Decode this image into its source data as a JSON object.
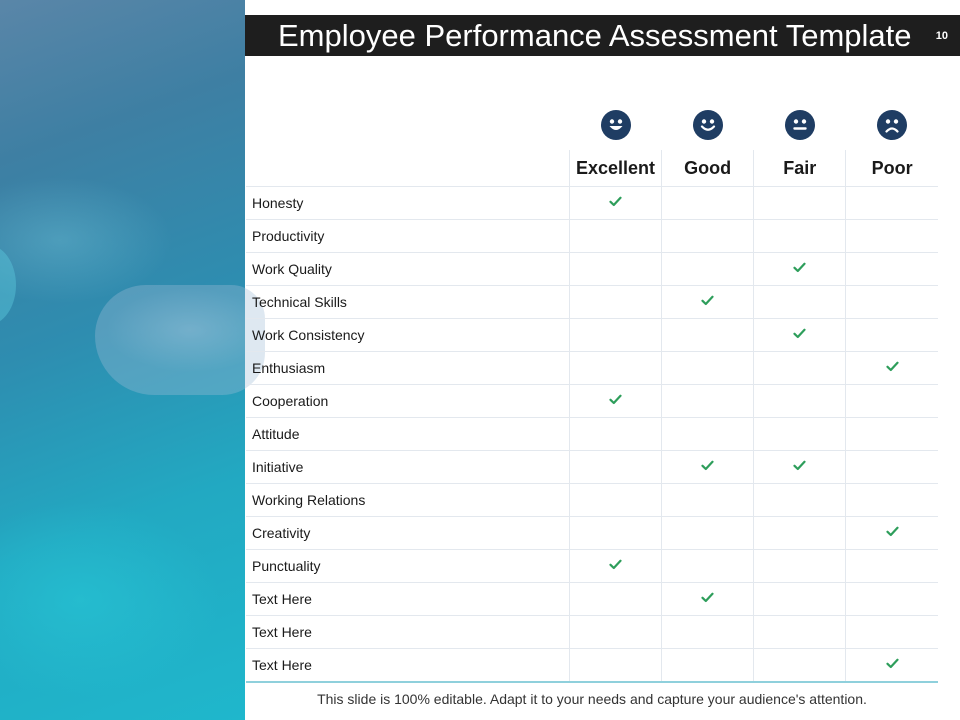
{
  "slide": {
    "title": "Employee Performance Assessment Template",
    "page_number": "10",
    "footer": "This slide is 100% editable. Adapt it to your needs and capture your audience's attention."
  },
  "colors": {
    "title_bar": "#1e1e1e",
    "icon_fill": "#1f3d63",
    "check": "#2e9e5b",
    "grid": "#e3e8ee",
    "bottom_rule": "#8fd0dc"
  },
  "ratings": [
    {
      "label": "Excellent",
      "icon": "very-happy-face-icon"
    },
    {
      "label": "Good",
      "icon": "happy-face-icon"
    },
    {
      "label": "Fair",
      "icon": "neutral-face-icon"
    },
    {
      "label": "Poor",
      "icon": "sad-face-icon"
    }
  ],
  "rows": [
    {
      "label": "Honesty",
      "checks": [
        true,
        false,
        false,
        false
      ]
    },
    {
      "label": "Productivity",
      "checks": [
        false,
        false,
        false,
        false
      ]
    },
    {
      "label": "Work Quality",
      "checks": [
        false,
        false,
        true,
        false
      ]
    },
    {
      "label": "Technical Skills",
      "checks": [
        false,
        true,
        false,
        false
      ]
    },
    {
      "label": "Work Consistency",
      "checks": [
        false,
        false,
        true,
        false
      ]
    },
    {
      "label": "Enthusiasm",
      "checks": [
        false,
        false,
        false,
        true
      ]
    },
    {
      "label": "Cooperation",
      "checks": [
        true,
        false,
        false,
        false
      ]
    },
    {
      "label": "Attitude",
      "checks": [
        false,
        false,
        false,
        false
      ]
    },
    {
      "label": "Initiative",
      "checks": [
        false,
        true,
        true,
        false
      ]
    },
    {
      "label": "Working Relations",
      "checks": [
        false,
        false,
        false,
        false
      ]
    },
    {
      "label": "Creativity",
      "checks": [
        false,
        false,
        false,
        true
      ]
    },
    {
      "label": "Punctuality",
      "checks": [
        true,
        false,
        false,
        false
      ]
    },
    {
      "label": "Text Here",
      "checks": [
        false,
        true,
        false,
        false
      ]
    },
    {
      "label": "Text Here",
      "checks": [
        false,
        false,
        false,
        false
      ]
    },
    {
      "label": "Text Here",
      "checks": [
        false,
        false,
        false,
        true
      ]
    }
  ]
}
